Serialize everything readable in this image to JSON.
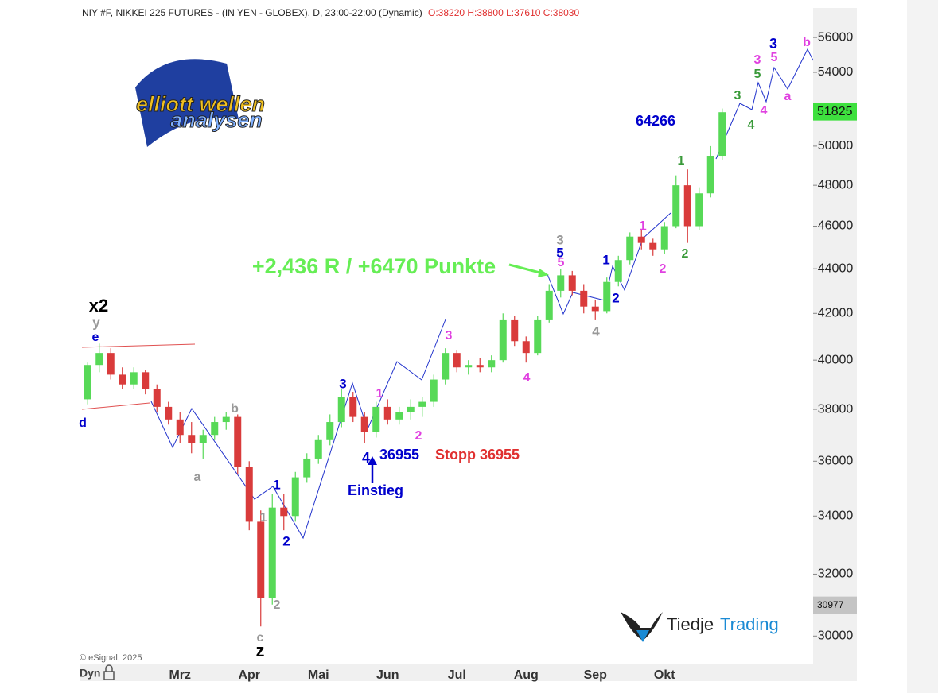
{
  "chart_data": {
    "type": "candlestick",
    "title": "NIY #F, NIKKEI 225 FUTURES - (IN YEN - GLOBEX), D, 23:00-22:00 (Dynamic)",
    "ohlc_text": "O:38220 H:38800 L:37610 C:38030",
    "copyright": "© eSignal, 2025",
    "period_label": "Dyn",
    "logo_top": "elliott wellen",
    "logo_bottom": "analysen",
    "brand_dark": "Tiedje",
    "brand_blue": "Trading",
    "log_scale": true,
    "up_color": "#57d957",
    "down_color": "#d93b3b",
    "categories": [
      null,
      null,
      null,
      null,
      null,
      null,
      null,
      null,
      "Mrz",
      null,
      null,
      null,
      null,
      null,
      "Apr",
      null,
      null,
      null,
      null,
      null,
      "Mai",
      null,
      null,
      null,
      null,
      null,
      "Jun",
      null,
      null,
      null,
      null,
      null,
      "Jul",
      null,
      null,
      null,
      null,
      null,
      "Aug",
      null,
      null,
      null,
      null,
      null,
      "Sep",
      null,
      null,
      null,
      null,
      null,
      "Okt",
      null,
      null,
      null,
      null,
      null
    ],
    "open": [
      38400,
      39800,
      40300,
      39400,
      39000,
      39500,
      38800,
      38100,
      37600,
      37000,
      36700,
      37000,
      37500,
      37700,
      35800,
      33800,
      31200,
      34300,
      34000,
      35400,
      36100,
      36800,
      37500,
      38500,
      37700,
      37100,
      38100,
      37600,
      37900,
      38100,
      38300,
      39200,
      40300,
      39700,
      39800,
      39700,
      40000,
      41700,
      40800,
      40300,
      41700,
      43000,
      43700,
      43000,
      42300,
      42100,
      43400,
      44400,
      45500,
      45200,
      44900,
      46000,
      48000,
      46000,
      47600,
      49500
    ],
    "high": [
      39900,
      40700,
      40500,
      39700,
      39700,
      39600,
      39000,
      38300,
      37900,
      37500,
      37200,
      37700,
      37900,
      37800,
      36000,
      34200,
      34800,
      34800,
      35600,
      36300,
      37000,
      37800,
      38800,
      38700,
      37900,
      38300,
      38400,
      38100,
      38400,
      38500,
      39400,
      40500,
      40400,
      40000,
      40100,
      40200,
      42000,
      41900,
      41000,
      41900,
      43300,
      44000,
      43900,
      43300,
      42600,
      43600,
      44600,
      45700,
      45800,
      45400,
      46200,
      48500,
      48800,
      47900,
      50000,
      52000
    ],
    "low": [
      38200,
      39500,
      39200,
      38800,
      38800,
      38600,
      37900,
      37400,
      36700,
      36300,
      36100,
      36800,
      37200,
      35500,
      33500,
      30300,
      31000,
      33500,
      33800,
      35200,
      35900,
      36600,
      37300,
      37500,
      36700,
      36900,
      37400,
      37400,
      37600,
      37700,
      38100,
      39000,
      39500,
      39400,
      39500,
      39500,
      39900,
      40600,
      39900,
      40200,
      41600,
      42700,
      42800,
      42000,
      41700,
      42000,
      43200,
      44200,
      44900,
      44600,
      44700,
      45900,
      45200,
      45800,
      47400,
      49300
    ],
    "close": [
      39800,
      40300,
      39400,
      39000,
      39500,
      38800,
      38100,
      37600,
      37000,
      36700,
      37000,
      37500,
      37700,
      35800,
      33800,
      31200,
      34300,
      34000,
      35400,
      36100,
      36800,
      37500,
      38500,
      37700,
      37100,
      38100,
      37600,
      37900,
      38100,
      38300,
      39200,
      40300,
      39700,
      39800,
      39700,
      40000,
      41700,
      40800,
      40300,
      41700,
      43000,
      43700,
      43000,
      42300,
      42100,
      43400,
      44400,
      45500,
      45200,
      44900,
      46000,
      48000,
      46000,
      47600,
      49500,
      51800
    ],
    "ylim": [
      29150,
      57750
    ],
    "yticks": [
      30000,
      32000,
      34000,
      36000,
      38000,
      40000,
      42000,
      44000,
      46000,
      48000,
      50000,
      54000,
      56000
    ],
    "price_badges": [
      {
        "value": 51825,
        "color": "#3ee03e"
      },
      {
        "value": 30977,
        "color": "#c4c4c4"
      }
    ],
    "annotations": [
      {
        "text": "x2",
        "color": "#000000"
      },
      {
        "text": "y",
        "color": "#999999"
      },
      {
        "text": "e",
        "color": "#0000cc"
      },
      {
        "text": "d",
        "color": "#0000cc"
      },
      {
        "text": "b",
        "color": "#999999"
      },
      {
        "text": "a",
        "color": "#999999"
      },
      {
        "text": "1",
        "color": "#0000cc"
      },
      {
        "text": "1",
        "color": "#999999"
      },
      {
        "text": "2",
        "color": "#0000cc"
      },
      {
        "text": "2",
        "color": "#999999"
      },
      {
        "text": "c",
        "color": "#999999"
      },
      {
        "text": "z",
        "color": "#000000"
      },
      {
        "text": "3",
        "color": "#0000cc"
      },
      {
        "text": "1",
        "color": "#e040e0"
      },
      {
        "text": "2",
        "color": "#e040e0"
      },
      {
        "text": "4",
        "color": "#0000cc"
      },
      {
        "text": "36955",
        "color": "#0000cc"
      },
      {
        "text": "Stopp 36955",
        "color": "#e03030"
      },
      {
        "text": "Einstieg",
        "color": "#0000cc"
      },
      {
        "text": "3",
        "color": "#e040e0"
      },
      {
        "text": "4",
        "color": "#e040e0"
      },
      {
        "text": "+2,436 R / +6470 Punkte",
        "color": "#66ee55"
      },
      {
        "text": "3",
        "color": "#999999"
      },
      {
        "text": "5",
        "color": "#0000cc"
      },
      {
        "text": "5",
        "color": "#e040e0"
      },
      {
        "text": "4",
        "color": "#999999"
      },
      {
        "text": "1",
        "color": "#0000cc"
      },
      {
        "text": "2",
        "color": "#0000cc"
      },
      {
        "text": "1",
        "color": "#e040e0"
      },
      {
        "text": "2",
        "color": "#e040e0"
      },
      {
        "text": "1",
        "color": "#3a9a3a"
      },
      {
        "text": "2",
        "color": "#3a9a3a"
      },
      {
        "text": "64266",
        "color": "#0000cc"
      },
      {
        "text": "3",
        "color": "#3a9a3a"
      },
      {
        "text": "4",
        "color": "#3a9a3a"
      },
      {
        "text": "5",
        "color": "#3a9a3a"
      },
      {
        "text": "3",
        "color": "#e040e0"
      },
      {
        "text": "4",
        "color": "#e040e0"
      },
      {
        "text": "5",
        "color": "#e040e0"
      },
      {
        "text": "3",
        "color": "#0000cc"
      },
      {
        "text": "a",
        "color": "#e040e0"
      },
      {
        "text": "b",
        "color": "#e040e0"
      }
    ]
  }
}
